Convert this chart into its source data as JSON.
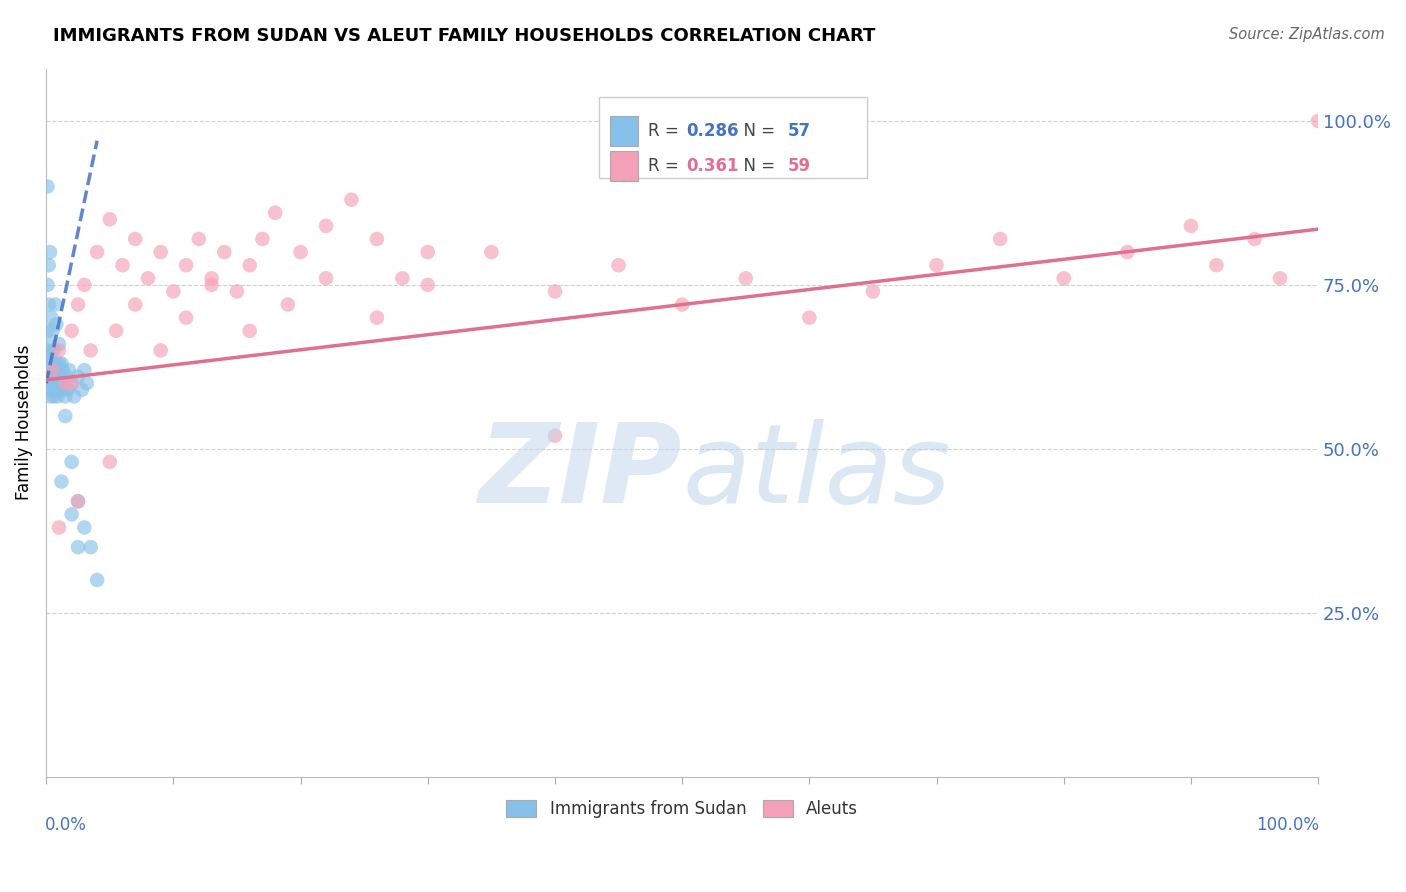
{
  "title": "IMMIGRANTS FROM SUDAN VS ALEUT FAMILY HOUSEHOLDS CORRELATION CHART",
  "source": "Source: ZipAtlas.com",
  "ylabel": "Family Households",
  "ylabel_right_labels": [
    "100.0%",
    "75.0%",
    "50.0%",
    "25.0%"
  ],
  "ylabel_right_values": [
    1.0,
    0.75,
    0.5,
    0.25
  ],
  "legend_blue_R": "0.286",
  "legend_blue_N": "57",
  "legend_pink_R": "0.361",
  "legend_pink_N": "59",
  "blue_color": "#87c0e8",
  "pink_color": "#f4a0b8",
  "blue_line_color": "#4472c4",
  "pink_line_color": "#e07090",
  "grid_color": "#cccccc",
  "blue_scatter_x": [
    0.001,
    0.001,
    0.001,
    0.002,
    0.002,
    0.002,
    0.003,
    0.003,
    0.003,
    0.004,
    0.004,
    0.005,
    0.005,
    0.006,
    0.006,
    0.007,
    0.007,
    0.008,
    0.008,
    0.009,
    0.01,
    0.01,
    0.011,
    0.012,
    0.013,
    0.014,
    0.015,
    0.016,
    0.017,
    0.018,
    0.02,
    0.022,
    0.025,
    0.028,
    0.03,
    0.032,
    0.001,
    0.001,
    0.002,
    0.002,
    0.003,
    0.004,
    0.005,
    0.006,
    0.007,
    0.008,
    0.01,
    0.012,
    0.015,
    0.02,
    0.025,
    0.03,
    0.035,
    0.04,
    0.012,
    0.02,
    0.025
  ],
  "blue_scatter_y": [
    0.62,
    0.65,
    0.68,
    0.6,
    0.63,
    0.66,
    0.58,
    0.61,
    0.64,
    0.59,
    0.62,
    0.6,
    0.63,
    0.58,
    0.61,
    0.59,
    0.62,
    0.6,
    0.63,
    0.58,
    0.6,
    0.63,
    0.61,
    0.59,
    0.62,
    0.6,
    0.58,
    0.61,
    0.59,
    0.62,
    0.6,
    0.58,
    0.61,
    0.59,
    0.62,
    0.6,
    0.9,
    0.75,
    0.78,
    0.72,
    0.8,
    0.7,
    0.68,
    0.65,
    0.72,
    0.69,
    0.66,
    0.63,
    0.55,
    0.48,
    0.42,
    0.38,
    0.35,
    0.3,
    0.45,
    0.4,
    0.35
  ],
  "pink_scatter_x": [
    0.005,
    0.01,
    0.015,
    0.02,
    0.025,
    0.03,
    0.04,
    0.05,
    0.06,
    0.07,
    0.08,
    0.09,
    0.1,
    0.11,
    0.12,
    0.13,
    0.14,
    0.15,
    0.16,
    0.17,
    0.18,
    0.2,
    0.22,
    0.24,
    0.26,
    0.28,
    0.3,
    0.02,
    0.035,
    0.055,
    0.07,
    0.09,
    0.11,
    0.13,
    0.16,
    0.19,
    0.22,
    0.26,
    0.3,
    0.35,
    0.4,
    0.45,
    0.5,
    0.55,
    0.6,
    0.65,
    0.7,
    0.75,
    0.8,
    0.85,
    0.9,
    0.92,
    0.95,
    0.97,
    1.0,
    0.01,
    0.025,
    0.05,
    0.4
  ],
  "pink_scatter_y": [
    0.62,
    0.65,
    0.6,
    0.68,
    0.72,
    0.75,
    0.8,
    0.85,
    0.78,
    0.82,
    0.76,
    0.8,
    0.74,
    0.78,
    0.82,
    0.76,
    0.8,
    0.74,
    0.78,
    0.82,
    0.86,
    0.8,
    0.84,
    0.88,
    0.82,
    0.76,
    0.8,
    0.6,
    0.65,
    0.68,
    0.72,
    0.65,
    0.7,
    0.75,
    0.68,
    0.72,
    0.76,
    0.7,
    0.75,
    0.8,
    0.74,
    0.78,
    0.72,
    0.76,
    0.7,
    0.74,
    0.78,
    0.82,
    0.76,
    0.8,
    0.84,
    0.78,
    0.82,
    0.76,
    1.0,
    0.38,
    0.42,
    0.48,
    0.52
  ],
  "xlim": [
    0.0,
    1.0
  ],
  "ylim": [
    0.0,
    1.08
  ],
  "blue_trend_x": [
    0.0,
    0.04
  ],
  "blue_trend_y_start": 0.6,
  "blue_trend_y_end": 0.97,
  "pink_trend_x": [
    0.0,
    1.0
  ],
  "pink_trend_y_start": 0.605,
  "pink_trend_y_end": 0.835
}
